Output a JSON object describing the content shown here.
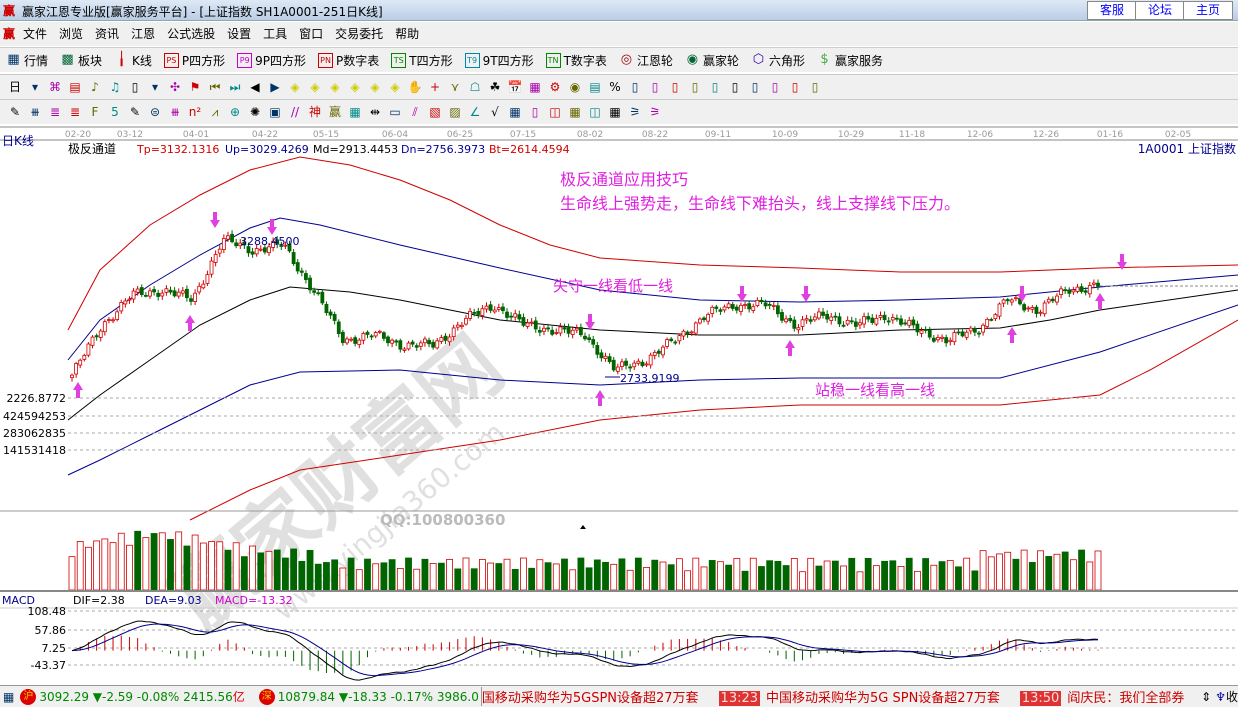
{
  "window": {
    "title": "赢家江恩专业版[赢家服务平台] - [上证指数  SH1A0001-251日K线]",
    "logo": "赢",
    "links": [
      "客服",
      "论坛",
      "主页"
    ]
  },
  "menu": [
    "文件",
    "浏览",
    "资讯",
    "江恩",
    "公式选股",
    "设置",
    "工具",
    "窗口",
    "交易委托",
    "帮助"
  ],
  "toolbar1": [
    {
      "icon": "grid-table-icon",
      "label": "行情"
    },
    {
      "icon": "blocks-icon",
      "label": "板块"
    },
    {
      "icon": "candles-icon",
      "label": "K线"
    },
    {
      "icon": "PS",
      "label": "P四方形"
    },
    {
      "icon": "P9",
      "label": "9P四方形"
    },
    {
      "icon": "PN",
      "label": "P数字表"
    },
    {
      "icon": "TS",
      "label": "T四方形"
    },
    {
      "icon": "T9",
      "label": "9T四方形"
    },
    {
      "icon": "TN",
      "label": "T数字表"
    },
    {
      "icon": "gann-wheel-icon",
      "label": "江恩轮"
    },
    {
      "icon": "yingjia-wheel-icon",
      "label": "赢家轮"
    },
    {
      "icon": "hexagon-icon",
      "label": "六角形"
    },
    {
      "icon": "dollar-icon",
      "label": "赢家服务"
    }
  ],
  "toolbar2_icons": [
    "日",
    "▾",
    "⌘",
    "▤",
    "♪",
    "♫",
    "▯",
    "▾",
    "✣",
    "⚑",
    "⏮",
    "⏭",
    "◀",
    "▶",
    "◈",
    "◈",
    "◈",
    "◈",
    "◈",
    "◈",
    "✋",
    "+",
    "⋎",
    "☖",
    "☘",
    "📅",
    "▦",
    "⚙",
    "◉",
    "▤",
    "%",
    "▯",
    "▯",
    "▯",
    "▯",
    "▯",
    "▯",
    "▯",
    "▯",
    "▯",
    "▯"
  ],
  "toolbar3_icons": [
    "✎",
    "⧻",
    "≣",
    "≣",
    "F",
    "5",
    "✎",
    "⊜",
    "⧻",
    "n²",
    "⩘",
    "⊕",
    "✺",
    "▣",
    "//",
    "神",
    "赢",
    "▦",
    "⇹",
    "▭",
    "⫽",
    "▧",
    "▨",
    "∠",
    "√",
    "▦",
    "▯",
    "◫",
    "▦",
    "◫",
    "▦",
    "⚞",
    "⚞"
  ],
  "chart": {
    "period_label": "日K线",
    "indicator_name": "极反通道",
    "indicator_values": [
      {
        "text": "Tp=3132.1316",
        "color": "#d00000"
      },
      {
        "text": "Up=3029.4269",
        "color": "#000090"
      },
      {
        "text": "Md=2913.4453",
        "color": "#000000"
      },
      {
        "text": "Dn=2756.3973",
        "color": "#000090"
      },
      {
        "text": "Bt=2614.4594",
        "color": "#d00000"
      }
    ],
    "symbol": "1A0001  上证指数",
    "dates": [
      "02-20",
      "03-12",
      "04-01",
      "04-22",
      "05-15",
      "06-04",
      "06-25",
      "07-15",
      "08-02",
      "08-22",
      "09-11",
      "10-09",
      "10-29",
      "11-18",
      "12-06",
      "12-26",
      "01-16",
      "02-05"
    ],
    "high_label": "3288.4500",
    "low_label": "2733.9199",
    "annotation_title": "极反通道应用技巧",
    "annotation_text": "生命线上强势走，生命线下难抬头，线上支撑线下压力。",
    "note_break": "失守一线看低一线",
    "note_hold": "站稳一线看高一线",
    "watermark": "赢家财富网",
    "watermark_url": "www.yingjia360.com",
    "qq": "QQ:100800360",
    "volume_labels": [
      "2226.8772",
      "424594253",
      "283062835",
      "141531418"
    ],
    "macd": {
      "name": "MACD",
      "dif": "DIF=2.38",
      "dea": "DEA=9.03",
      "macd": "MACD=-13.32",
      "axis": [
        "108.48",
        "57.86",
        "7.25",
        "-43.37"
      ]
    },
    "colors": {
      "up": "#d00000",
      "down": "#006400",
      "mid": "#000000",
      "band": "#000090",
      "outer": "#d00000",
      "annotation": "#e020e0"
    }
  },
  "chart_data": {
    "type": "candlestick",
    "bars": 251,
    "close_path": [
      2745,
      2943,
      3062,
      3082,
      3043,
      3280,
      3241,
      3260,
      3082,
      2884,
      2904,
      2864,
      2864,
      2963,
      3023,
      2943,
      2924,
      2904,
      2765,
      2805,
      2884,
      2983,
      3023,
      3023,
      2943,
      2983,
      2943,
      2983,
      2924,
      2884,
      2924,
      3043,
      3003,
      3082,
      3102
    ],
    "high": 3288.45,
    "low": 2733.92
  },
  "status": {
    "sh_badge": "沪",
    "sh_text": "3092.29 ▼-2.59 -0.08% 2415.56",
    "sh_unit": "亿",
    "sz_badge": "深",
    "sz_text": "10879.84 ▼-18.33 -0.17% 3986.0",
    "news": [
      {
        "time": "",
        "text": "国移动采购华为5GSPN设备超27万套"
      },
      {
        "time": "13:23",
        "text": "中国移动采购华为5G SPN设备超27万套"
      },
      {
        "time": "13:50",
        "text": "阎庆民：我们全部券"
      }
    ],
    "tail": "收"
  }
}
